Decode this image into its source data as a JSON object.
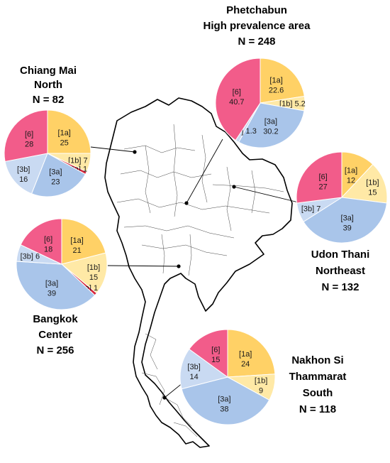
{
  "colors": {
    "1a": "#ffd166",
    "1b": "#ffe9a6",
    "2a": "#d7263d",
    "3a": "#a9c5ea",
    "3b": "#c9daf2",
    "6": "#f25c8a"
  },
  "chart_data": [
    {
      "type": "pie",
      "region": "Chiang Mai",
      "title_lines": [
        "Chiang Mai",
        "North",
        "N = 82"
      ],
      "slices": [
        {
          "genotype": "1a",
          "label": "[1a]",
          "value": 25,
          "value_label": "25"
        },
        {
          "genotype": "1b",
          "label": "[1b]",
          "value": 7,
          "value_label": "7"
        },
        {
          "genotype": "2a",
          "label": "[2a]",
          "value": 1,
          "value_label": "1"
        },
        {
          "genotype": "3a",
          "label": "[3a]",
          "value": 23,
          "value_label": "23"
        },
        {
          "genotype": "3b",
          "label": "[3b]",
          "value": 16,
          "value_label": "16"
        },
        {
          "genotype": "6",
          "label": "[6]",
          "value": 28,
          "value_label": "28"
        }
      ]
    },
    {
      "type": "pie",
      "region": "Phetchabun",
      "title_lines": [
        "Phetchabun",
        "High prevalence area",
        "N = 248"
      ],
      "slices": [
        {
          "genotype": "1a",
          "label": "[1a]",
          "value": 22.6,
          "value_label": "22.6"
        },
        {
          "genotype": "1b",
          "label": "[1b]",
          "value": 5.2,
          "value_label": "5.2"
        },
        {
          "genotype": "3a",
          "label": "[3a]",
          "value": 30.2,
          "value_label": "30.2"
        },
        {
          "genotype": "3b",
          "label": "[3b]",
          "value": 1.3,
          "value_label": "1.3"
        },
        {
          "genotype": "6",
          "label": "[6]",
          "value": 40.7,
          "value_label": "40.7"
        }
      ]
    },
    {
      "type": "pie",
      "region": "Udon Thani",
      "title_lines": [
        "Udon Thani",
        "Northeast",
        "N = 132"
      ],
      "slices": [
        {
          "genotype": "1a",
          "label": "[1a]",
          "value": 12,
          "value_label": "12"
        },
        {
          "genotype": "1b",
          "label": "[1b]",
          "value": 15,
          "value_label": "15"
        },
        {
          "genotype": "3a",
          "label": "[3a]",
          "value": 39,
          "value_label": "39"
        },
        {
          "genotype": "3b",
          "label": "[3b]",
          "value": 7,
          "value_label": "7"
        },
        {
          "genotype": "6",
          "label": "[6]",
          "value": 27,
          "value_label": "27"
        }
      ]
    },
    {
      "type": "pie",
      "region": "Bangkok",
      "title_lines": [
        "Bangkok",
        "Center",
        "N = 256"
      ],
      "slices": [
        {
          "genotype": "1a",
          "label": "[1a]",
          "value": 21,
          "value_label": "21"
        },
        {
          "genotype": "1b",
          "label": "[1b]",
          "value": 15,
          "value_label": "15"
        },
        {
          "genotype": "2a",
          "label": "[2a]",
          "value": 1,
          "value_label": "1"
        },
        {
          "genotype": "3a",
          "label": "[3a]",
          "value": 39,
          "value_label": "39"
        },
        {
          "genotype": "3b",
          "label": "[3b]",
          "value": 6,
          "value_label": "6"
        },
        {
          "genotype": "6",
          "label": "[6]",
          "value": 18,
          "value_label": "18"
        }
      ]
    },
    {
      "type": "pie",
      "region": "Nakhon Si Thammarat",
      "title_lines": [
        "Nakhon Si",
        "Thammarat",
        "South",
        "N = 118"
      ],
      "slices": [
        {
          "genotype": "1a",
          "label": "[1a]",
          "value": 24,
          "value_label": "24"
        },
        {
          "genotype": "1b",
          "label": "[1b]",
          "value": 9,
          "value_label": "9"
        },
        {
          "genotype": "3a",
          "label": "[3a]",
          "value": 38,
          "value_label": "38"
        },
        {
          "genotype": "3b",
          "label": "[3b]",
          "value": 14,
          "value_label": "14"
        },
        {
          "genotype": "6",
          "label": "[6]",
          "value": 15,
          "value_label": "15"
        }
      ]
    }
  ]
}
